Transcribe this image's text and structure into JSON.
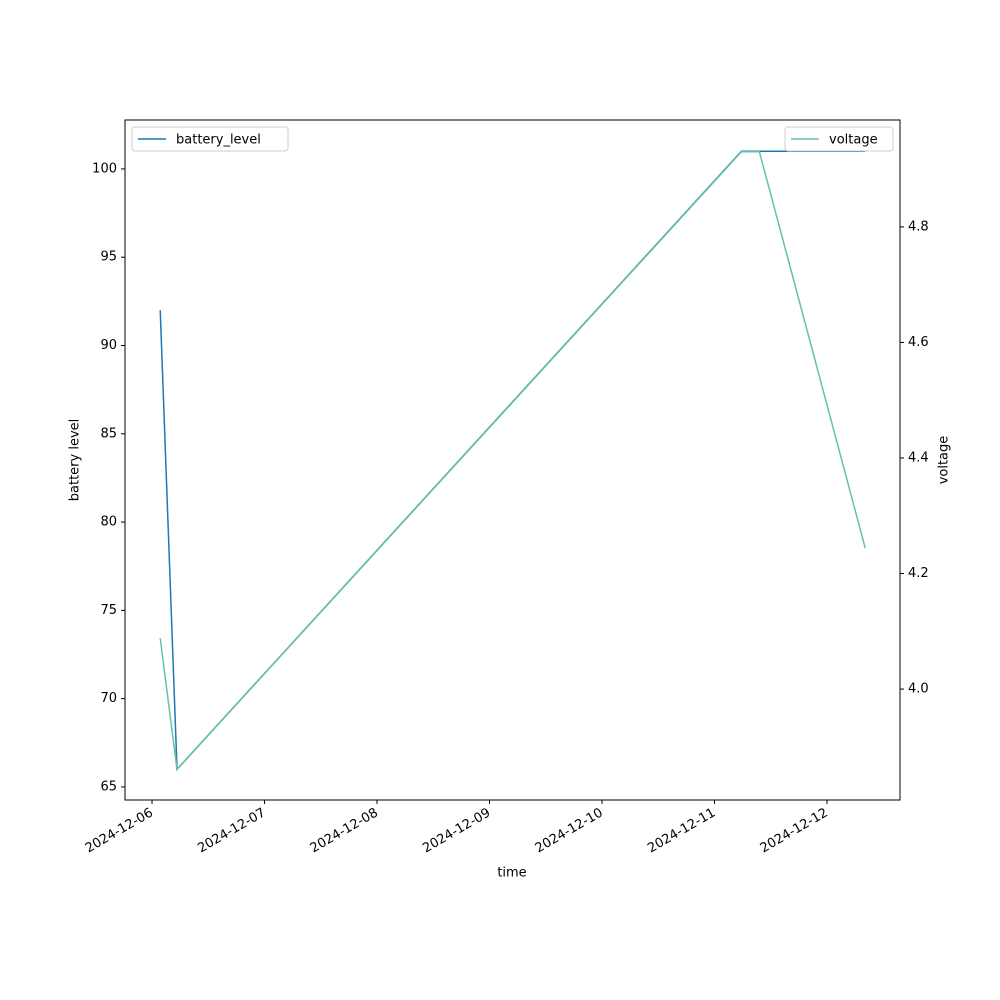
{
  "chart_data": {
    "type": "line",
    "x_label": "time",
    "y_label": "battery level",
    "y2_label": "voltage",
    "xlim": [
      "2024-12-05T18:14",
      "2024-12-12T15:35"
    ],
    "xticks": [
      "2024-12-06",
      "2024-12-07",
      "2024-12-08",
      "2024-12-09",
      "2024-12-10",
      "2024-12-11",
      "2024-12-12"
    ],
    "ylim": [
      64.26,
      102.77
    ],
    "yticks": [
      65,
      70,
      75,
      80,
      85,
      90,
      95,
      100
    ],
    "y2lim": [
      3.808,
      4.985
    ],
    "y2ticks": [
      {
        "value": 4,
        "label": "4.0"
      },
      4.2,
      4.4,
      4.6,
      4.8
    ],
    "series": [
      {
        "name": "battery_level",
        "color": "#1f77b4",
        "legend": "upper left",
        "x": [
          "2024-12-06T01:45",
          "2024-12-06T05:20",
          "2024-12-11T05:45",
          "2024-12-12T08:10"
        ],
        "values": [
          92,
          66,
          101,
          101
        ]
      },
      {
        "name": "voltage",
        "color": "#66c2a5",
        "axis": "y2",
        "legend": "upper right",
        "x": [
          "2024-12-06T01:45",
          "2024-12-06T05:20",
          "2024-12-11T05:45",
          "2024-12-11T09:35",
          "2024-12-12T08:10"
        ],
        "values": [
          4.088,
          3.861,
          4.93,
          4.93,
          4.244
        ]
      }
    ]
  }
}
